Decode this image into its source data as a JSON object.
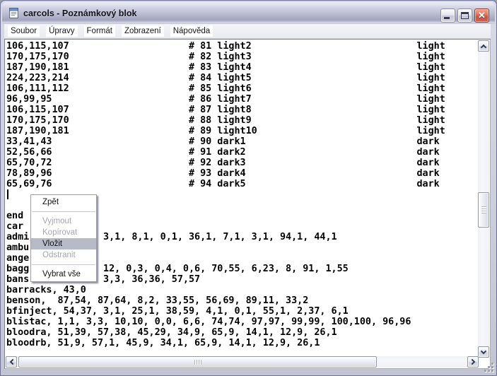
{
  "window": {
    "title": "carcols - Poznámkový blok",
    "icons": {
      "app": "notepad-icon",
      "close_glyph": "✕"
    }
  },
  "menubar": {
    "items": [
      "Soubor",
      "Úpravy",
      "Formát",
      "Zobrazení",
      "Nápověda"
    ]
  },
  "editor": {
    "tab_columns": [
      0,
      32,
      72
    ],
    "lines": [
      {
        "cols": [
          "106,115,107",
          "# 81 light2",
          "light"
        ]
      },
      {
        "cols": [
          "170,175,170",
          "# 82 light3",
          "light"
        ]
      },
      {
        "cols": [
          "187,190,181",
          "# 83 light4",
          "light"
        ]
      },
      {
        "cols": [
          "224,223,214",
          "# 84 light5",
          "light"
        ]
      },
      {
        "cols": [
          "106,111,112",
          "# 85 light6",
          "light"
        ]
      },
      {
        "cols": [
          "96,99,95",
          "# 86 light7",
          "light"
        ]
      },
      {
        "cols": [
          "106,115,107",
          "# 87 light8",
          "light"
        ]
      },
      {
        "cols": [
          "170,175,170",
          "# 88 light9",
          "light"
        ]
      },
      {
        "cols": [
          "187,190,181",
          "# 89 light10",
          "light"
        ]
      },
      {
        "cols": [
          "33,41,43",
          "# 90 dark1",
          "dark"
        ]
      },
      {
        "cols": [
          "52,56,66",
          "# 91 dark2",
          "dark"
        ]
      },
      {
        "cols": [
          "65,70,72",
          "# 92 dark3",
          "dark"
        ]
      },
      {
        "cols": [
          "78,89,96",
          "# 93 dark4",
          "dark"
        ]
      },
      {
        "cols": [
          "65,69,76",
          "# 94 dark5",
          "dark"
        ]
      },
      "",
      "",
      "end",
      "car",
      {
        "left": "admi",
        "col": 17,
        "right": "3,1, 8,1, 0,1, 36,1, 7,1, 3,1, 94,1, 44,1"
      },
      "ambu",
      "ange",
      {
        "left": "bagg",
        "col": 17,
        "right": "12, 0,3, 0,4, 0,6, 70,55, 6,23, 8, 91, 1,55"
      },
      {
        "left": "bans",
        "col": 17,
        "right": "3,3, 36,36, 57,57"
      },
      "barracks, 43,0",
      "benson,  87,54, 87,64, 8,2, 33,55, 56,69, 89,11, 33,2",
      "bfinject, 54,37, 3,1, 25,1, 38,59, 4,1, 0,1, 55,1, 2,37, 6,1",
      "blistac, 1,1, 3,3, 10,10, 0,0, 6,6, 74,74, 97,97, 99,99, 100,100, 96,96",
      "bloodra, 51,39, 57,38, 45,29, 34,9, 65,9, 14,1, 12,9, 26,1",
      "bloodrb, 51,9, 57,1, 45,9, 34,1, 65,9, 14,1, 12,9, 26,1"
    ]
  },
  "context_menu": {
    "items": [
      {
        "label": "Zpět",
        "state": "enabled"
      },
      {
        "type": "separator"
      },
      {
        "label": "Vyjmout",
        "state": "disabled"
      },
      {
        "label": "Kopírovat",
        "state": "disabled"
      },
      {
        "label": "Vložit",
        "state": "highlighted"
      },
      {
        "label": "Odstranit",
        "state": "disabled"
      },
      {
        "type": "separator"
      },
      {
        "label": "Vybrat vše",
        "state": "enabled"
      }
    ]
  },
  "colors": {
    "titlebar_top": "#eceef6",
    "titlebar_bottom": "#a2a4bf",
    "close_button": "#ca5241",
    "menu_highlight": "#b7bbc8",
    "disabled_text": "#a5a7b0",
    "editor_bg": "#ffffff",
    "editor_text": "#000000"
  }
}
